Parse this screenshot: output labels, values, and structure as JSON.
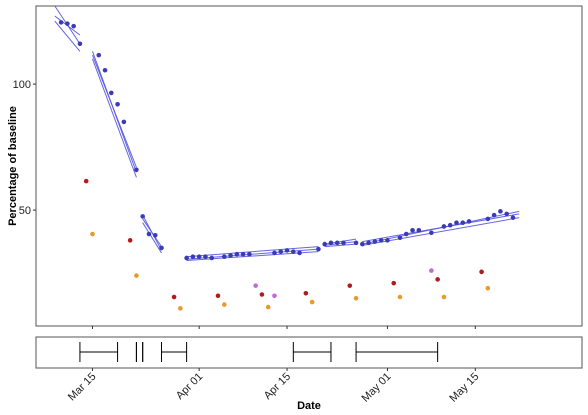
{
  "chart_data": {
    "type": "scatter",
    "xlabel": "Date",
    "ylabel": "Percentage of baseline",
    "x_ticks": [
      "Mar 15",
      "Apr 01",
      "Apr 15",
      "May 01",
      "May 15"
    ],
    "x_tick_dates": [
      "2020-03-15",
      "2020-04-01",
      "2020-04-15",
      "2020-05-01",
      "2020-05-15"
    ],
    "xlim": [
      "2020-03-06",
      "2020-06-01"
    ],
    "y_ticks": [
      50,
      100
    ],
    "ylim": [
      4,
      131
    ],
    "grid": false,
    "colors": {
      "main": "#3b3bb8",
      "fit": "#5555dd",
      "red": "#b01c1c",
      "orange": "#e89a2a",
      "violet": "#c06ad6"
    },
    "series": [
      {
        "color": "main",
        "points": [
          [
            "2020-03-10",
            124.5
          ],
          [
            "2020-03-11",
            124
          ],
          [
            "2020-03-12",
            123
          ],
          [
            "2020-03-13",
            116
          ],
          [
            "2020-03-16",
            111.5
          ],
          [
            "2020-03-17",
            105.5
          ],
          [
            "2020-03-18",
            96.5
          ],
          [
            "2020-03-19",
            92
          ],
          [
            "2020-03-20",
            85
          ],
          [
            "2020-03-22",
            66
          ],
          [
            "2020-03-23",
            47.5
          ],
          [
            "2020-03-24",
            40.5
          ],
          [
            "2020-03-25",
            40
          ],
          [
            "2020-03-26",
            35
          ],
          [
            "2020-03-30",
            31
          ],
          [
            "2020-03-31",
            31.5
          ],
          [
            "2020-04-01",
            31.5
          ],
          [
            "2020-04-02",
            31.5
          ],
          [
            "2020-04-03",
            31
          ],
          [
            "2020-04-05",
            31.5
          ],
          [
            "2020-04-06",
            32
          ],
          [
            "2020-04-07",
            32.5
          ],
          [
            "2020-04-08",
            32.5
          ],
          [
            "2020-04-09",
            32.5
          ],
          [
            "2020-04-13",
            33
          ],
          [
            "2020-04-14",
            33.5
          ],
          [
            "2020-04-15",
            34
          ],
          [
            "2020-04-16",
            33.5
          ],
          [
            "2020-04-17",
            33
          ],
          [
            "2020-04-20",
            34.5
          ],
          [
            "2020-04-21",
            36.5
          ],
          [
            "2020-04-22",
            37
          ],
          [
            "2020-04-23",
            37
          ],
          [
            "2020-04-24",
            37
          ],
          [
            "2020-04-26",
            37
          ],
          [
            "2020-04-27",
            36.5
          ],
          [
            "2020-04-28",
            37
          ],
          [
            "2020-04-29",
            37.5
          ],
          [
            "2020-04-30",
            38
          ],
          [
            "2020-05-01",
            38
          ],
          [
            "2020-05-03",
            39
          ],
          [
            "2020-05-04",
            40.5
          ],
          [
            "2020-05-05",
            42
          ],
          [
            "2020-05-06",
            42
          ],
          [
            "2020-05-08",
            41
          ],
          [
            "2020-05-10",
            43.5
          ],
          [
            "2020-05-11",
            44
          ],
          [
            "2020-05-12",
            45
          ],
          [
            "2020-05-13",
            45
          ],
          [
            "2020-05-14",
            45.5
          ],
          [
            "2020-05-17",
            46.5
          ],
          [
            "2020-05-18",
            48
          ],
          [
            "2020-05-19",
            49.5
          ],
          [
            "2020-05-20",
            48.5
          ],
          [
            "2020-05-21",
            47
          ]
        ]
      },
      {
        "color": "red",
        "points": [
          [
            "2020-03-14",
            61.5
          ],
          [
            "2020-03-21",
            38
          ],
          [
            "2020-03-28",
            15.5
          ],
          [
            "2020-04-04",
            16
          ],
          [
            "2020-04-11",
            16.5
          ],
          [
            "2020-04-18",
            17
          ],
          [
            "2020-04-25",
            20
          ],
          [
            "2020-05-02",
            21
          ],
          [
            "2020-05-09",
            22.5
          ],
          [
            "2020-05-16",
            25.5
          ]
        ]
      },
      {
        "color": "orange",
        "points": [
          [
            "2020-03-15",
            40.5
          ],
          [
            "2020-03-22",
            24
          ],
          [
            "2020-03-29",
            11
          ],
          [
            "2020-04-05",
            12.5
          ],
          [
            "2020-04-12",
            11.5
          ],
          [
            "2020-04-19",
            13.5
          ],
          [
            "2020-04-26",
            15
          ],
          [
            "2020-05-03",
            15.5
          ],
          [
            "2020-05-10",
            15.5
          ],
          [
            "2020-05-17",
            19
          ]
        ]
      },
      {
        "color": "violet",
        "points": [
          [
            "2020-04-10",
            20
          ],
          [
            "2020-04-13",
            16
          ],
          [
            "2020-05-08",
            26
          ]
        ]
      }
    ],
    "fit_segments": [
      {
        "x": [
          "2020-03-09",
          "2020-03-13"
        ],
        "lines": [
          [
            131,
            116
          ],
          [
            127,
            119.5
          ],
          [
            125,
            113
          ]
        ]
      },
      {
        "x": [
          "2020-03-15",
          "2020-03-22"
        ],
        "lines": [
          [
            113,
            65
          ],
          [
            111.5,
            67
          ],
          [
            110,
            63
          ]
        ]
      },
      {
        "x": [
          "2020-03-23",
          "2020-03-26"
        ],
        "lines": [
          [
            48,
            34
          ],
          [
            46.5,
            35.5
          ],
          [
            45,
            33
          ]
        ]
      },
      {
        "x": [
          "2020-03-30",
          "2020-04-20"
        ],
        "lines": [
          [
            31.5,
            35.5
          ],
          [
            30.5,
            34.5
          ],
          [
            30,
            33.5
          ]
        ]
      },
      {
        "x": [
          "2020-04-21",
          "2020-04-26"
        ],
        "lines": [
          [
            36.5,
            38.5
          ],
          [
            36,
            37.5
          ],
          [
            35.5,
            36.5
          ]
        ]
      },
      {
        "x": [
          "2020-04-27",
          "2020-05-22"
        ],
        "lines": [
          [
            37.5,
            48.5
          ],
          [
            36.5,
            49.5
          ],
          [
            36,
            47
          ]
        ]
      }
    ],
    "intervals": [
      [
        "2020-03-13",
        "2020-03-19"
      ],
      [
        "2020-03-22",
        "2020-03-22"
      ],
      [
        "2020-03-23",
        "2020-03-23"
      ],
      [
        "2020-03-26",
        "2020-03-30"
      ],
      [
        "2020-04-16",
        "2020-04-22"
      ],
      [
        "2020-04-26",
        "2020-05-09"
      ]
    ]
  }
}
